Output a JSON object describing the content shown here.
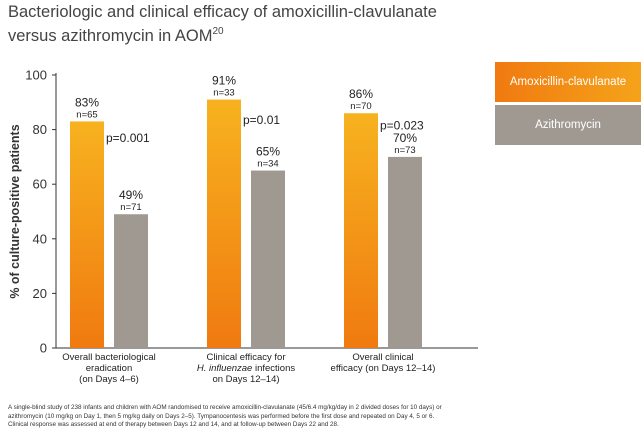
{
  "title_line1": "Bacteriologic and clinical efficacy of amoxicillin-clavulanate",
  "title_line2": "versus azithromycin in AOM",
  "title_sup": "20",
  "legend": {
    "amox": "Amoxicillin-clavulanate",
    "azi": "Azithromycin"
  },
  "colors": {
    "amox_start": "#f07a10",
    "amox_end": "#f5a31a",
    "azi": "#a09992"
  },
  "chart_data": {
    "type": "bar",
    "ylabel": "% of culture-positive patients",
    "ylim": [
      0,
      100
    ],
    "yticks": [
      0,
      20,
      40,
      60,
      80,
      100
    ],
    "categories": [
      [
        "Overall bacteriological",
        "eradication",
        "(on Days 4–6)"
      ],
      [
        "Clinical efficacy for",
        "H. influenzae infections",
        "on Days 12–14)"
      ],
      [
        "Overall clinical",
        "efficacy (on Days 12–14)"
      ]
    ],
    "series": [
      {
        "name": "Amoxicillin-clavulanate",
        "values": [
          83,
          91,
          86
        ],
        "pct_labels": [
          "83%",
          "91%",
          "86%"
        ],
        "n_labels": [
          "n=65",
          "n=33",
          "n=70"
        ]
      },
      {
        "name": "Azithromycin",
        "values": [
          49,
          65,
          70
        ],
        "pct_labels": [
          "49%",
          "65%",
          "70%"
        ],
        "n_labels": [
          "n=71",
          "n=34",
          "n=73"
        ]
      }
    ],
    "p_values": [
      "p=0.001",
      "p=0.01",
      "p=0.023"
    ]
  },
  "footnote": [
    "A single-blind study of 238 infants and children with AOM randomised to receive amoxicillin-clavulanate (45/6.4 mg/kg/day in 2 divided doses for 10 days) or",
    "azithromycin (10 mg/kg on Day 1, then 5 mg/kg daily on Days 2–5). Tympanocentesis was performed before the first dose and repeated on Day 4, 5 or 6.",
    "Clinical response was assessed at end of therapy between Days 12 and 14, and at follow-up between Days 22 and 28."
  ]
}
